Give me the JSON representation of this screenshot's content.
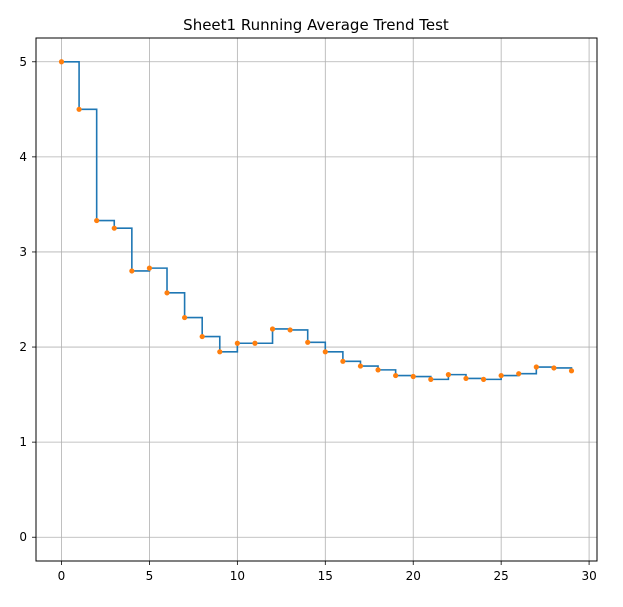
{
  "chart_data": {
    "type": "line",
    "title": "Sheet1 Running Average Trend Test",
    "xlabel": "",
    "ylabel": "",
    "xlim": [
      -1.45,
      30.45
    ],
    "ylim": [
      -0.25,
      5.25
    ],
    "x_ticks": [
      0,
      5,
      10,
      15,
      20,
      25,
      30
    ],
    "y_ticks": [
      0,
      1,
      2,
      3,
      4,
      5
    ],
    "grid": true,
    "legend": "none",
    "colors": {
      "step": "#1f77b4",
      "points": "#ff7f0e"
    },
    "x": [
      0,
      1,
      2,
      3,
      4,
      5,
      6,
      7,
      8,
      9,
      10,
      11,
      12,
      13,
      14,
      15,
      16,
      17,
      18,
      19,
      20,
      21,
      22,
      23,
      24,
      25,
      26,
      27,
      28,
      29
    ],
    "series": [
      {
        "style": "step-post",
        "values": [
          5.0,
          4.5,
          3.33,
          3.25,
          2.8,
          2.83,
          2.57,
          2.31,
          2.11,
          1.95,
          2.04,
          2.04,
          2.19,
          2.18,
          2.05,
          1.95,
          1.85,
          1.8,
          1.76,
          1.7,
          1.69,
          1.66,
          1.71,
          1.67,
          1.66,
          1.7,
          1.72,
          1.79,
          1.78,
          1.75
        ]
      },
      {
        "style": "markers",
        "values": [
          5.0,
          4.5,
          3.33,
          3.25,
          2.8,
          2.83,
          2.57,
          2.31,
          2.11,
          1.95,
          2.04,
          2.04,
          2.19,
          2.18,
          2.05,
          1.95,
          1.85,
          1.8,
          1.76,
          1.7,
          1.69,
          1.66,
          1.71,
          1.67,
          1.66,
          1.7,
          1.72,
          1.79,
          1.78,
          1.75
        ]
      }
    ]
  }
}
